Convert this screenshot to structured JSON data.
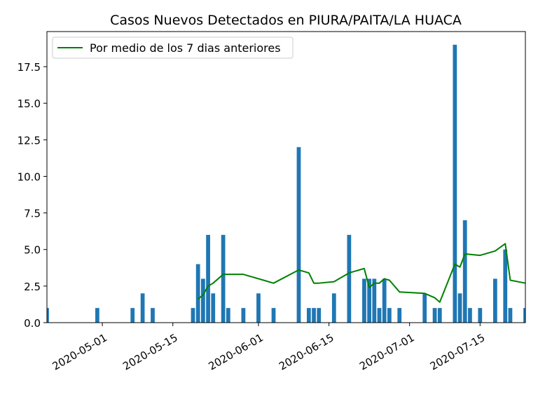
{
  "chart_data": {
    "type": "bar",
    "title": "Casos Nuevos Detectados en PIURA/PAITA/LA HUACA",
    "xlabel": "",
    "ylabel": "",
    "x_axis": {
      "type": "date",
      "range": [
        "2020-04-20",
        "2020-07-24"
      ],
      "tick_labels": [
        "2020-05-01",
        "2020-05-15",
        "2020-06-01",
        "2020-06-15",
        "2020-07-01",
        "2020-07-15"
      ]
    },
    "y_axis": {
      "range": [
        0,
        19.9
      ],
      "ticks": [
        0,
        2.5,
        5,
        7.5,
        10,
        12.5,
        15,
        17.5
      ],
      "tick_labels": [
        "0.0",
        "2.5",
        "5.0",
        "7.5",
        "10.0",
        "12.5",
        "15.0",
        "17.5"
      ]
    },
    "grid": false,
    "legend": {
      "position": "top-left",
      "entries": [
        "Por medio de los 7 dias anteriores"
      ]
    },
    "colors": {
      "bars": "#1f77b4",
      "line": "#008000",
      "axes": "#000000"
    },
    "series": [
      {
        "kind": "bar",
        "points": [
          {
            "date": "2020-04-20",
            "value": 1
          },
          {
            "date": "2020-04-30",
            "value": 1
          },
          {
            "date": "2020-05-07",
            "value": 1
          },
          {
            "date": "2020-05-09",
            "value": 2
          },
          {
            "date": "2020-05-11",
            "value": 1
          },
          {
            "date": "2020-05-19",
            "value": 1
          },
          {
            "date": "2020-05-20",
            "value": 4
          },
          {
            "date": "2020-05-21",
            "value": 3
          },
          {
            "date": "2020-05-22",
            "value": 6
          },
          {
            "date": "2020-05-23",
            "value": 2
          },
          {
            "date": "2020-05-25",
            "value": 6
          },
          {
            "date": "2020-05-26",
            "value": 1
          },
          {
            "date": "2020-05-29",
            "value": 1
          },
          {
            "date": "2020-06-01",
            "value": 2
          },
          {
            "date": "2020-06-04",
            "value": 1
          },
          {
            "date": "2020-06-09",
            "value": 12
          },
          {
            "date": "2020-06-11",
            "value": 1
          },
          {
            "date": "2020-06-12",
            "value": 1
          },
          {
            "date": "2020-06-13",
            "value": 1
          },
          {
            "date": "2020-06-16",
            "value": 2
          },
          {
            "date": "2020-06-19",
            "value": 6
          },
          {
            "date": "2020-06-22",
            "value": 3
          },
          {
            "date": "2020-06-23",
            "value": 3
          },
          {
            "date": "2020-06-24",
            "value": 3
          },
          {
            "date": "2020-06-25",
            "value": 1
          },
          {
            "date": "2020-06-26",
            "value": 3
          },
          {
            "date": "2020-06-27",
            "value": 1
          },
          {
            "date": "2020-06-29",
            "value": 1
          },
          {
            "date": "2020-07-04",
            "value": 2
          },
          {
            "date": "2020-07-06",
            "value": 1
          },
          {
            "date": "2020-07-07",
            "value": 1
          },
          {
            "date": "2020-07-10",
            "value": 19
          },
          {
            "date": "2020-07-11",
            "value": 2
          },
          {
            "date": "2020-07-12",
            "value": 7
          },
          {
            "date": "2020-07-13",
            "value": 1
          },
          {
            "date": "2020-07-15",
            "value": 1
          },
          {
            "date": "2020-07-18",
            "value": 3
          },
          {
            "date": "2020-07-20",
            "value": 5
          },
          {
            "date": "2020-07-21",
            "value": 1
          },
          {
            "date": "2020-07-24",
            "value": 1
          }
        ]
      },
      {
        "kind": "line",
        "name": "Por medio de los 7 dias anteriores",
        "points": [
          {
            "date": "2020-05-20",
            "value": 1.6
          },
          {
            "date": "2020-05-21",
            "value": 1.9
          },
          {
            "date": "2020-05-22",
            "value": 2.5
          },
          {
            "date": "2020-05-23",
            "value": 2.7
          },
          {
            "date": "2020-05-25",
            "value": 3.3
          },
          {
            "date": "2020-05-29",
            "value": 3.3
          },
          {
            "date": "2020-06-04",
            "value": 2.7
          },
          {
            "date": "2020-06-09",
            "value": 3.6
          },
          {
            "date": "2020-06-11",
            "value": 3.4
          },
          {
            "date": "2020-06-12",
            "value": 2.7
          },
          {
            "date": "2020-06-13",
            "value": 2.7
          },
          {
            "date": "2020-06-16",
            "value": 2.8
          },
          {
            "date": "2020-06-19",
            "value": 3.4
          },
          {
            "date": "2020-06-22",
            "value": 3.7
          },
          {
            "date": "2020-06-23",
            "value": 2.4
          },
          {
            "date": "2020-06-24",
            "value": 2.7
          },
          {
            "date": "2020-06-25",
            "value": 2.7
          },
          {
            "date": "2020-06-26",
            "value": 3.0
          },
          {
            "date": "2020-06-27",
            "value": 2.9
          },
          {
            "date": "2020-06-29",
            "value": 2.1
          },
          {
            "date": "2020-07-04",
            "value": 2.0
          },
          {
            "date": "2020-07-06",
            "value": 1.7
          },
          {
            "date": "2020-07-07",
            "value": 1.4
          },
          {
            "date": "2020-07-10",
            "value": 4.0
          },
          {
            "date": "2020-07-11",
            "value": 3.8
          },
          {
            "date": "2020-07-12",
            "value": 4.7
          },
          {
            "date": "2020-07-15",
            "value": 4.6
          },
          {
            "date": "2020-07-18",
            "value": 4.9
          },
          {
            "date": "2020-07-20",
            "value": 5.4
          },
          {
            "date": "2020-07-21",
            "value": 2.9
          },
          {
            "date": "2020-07-24",
            "value": 2.7
          }
        ]
      }
    ]
  }
}
